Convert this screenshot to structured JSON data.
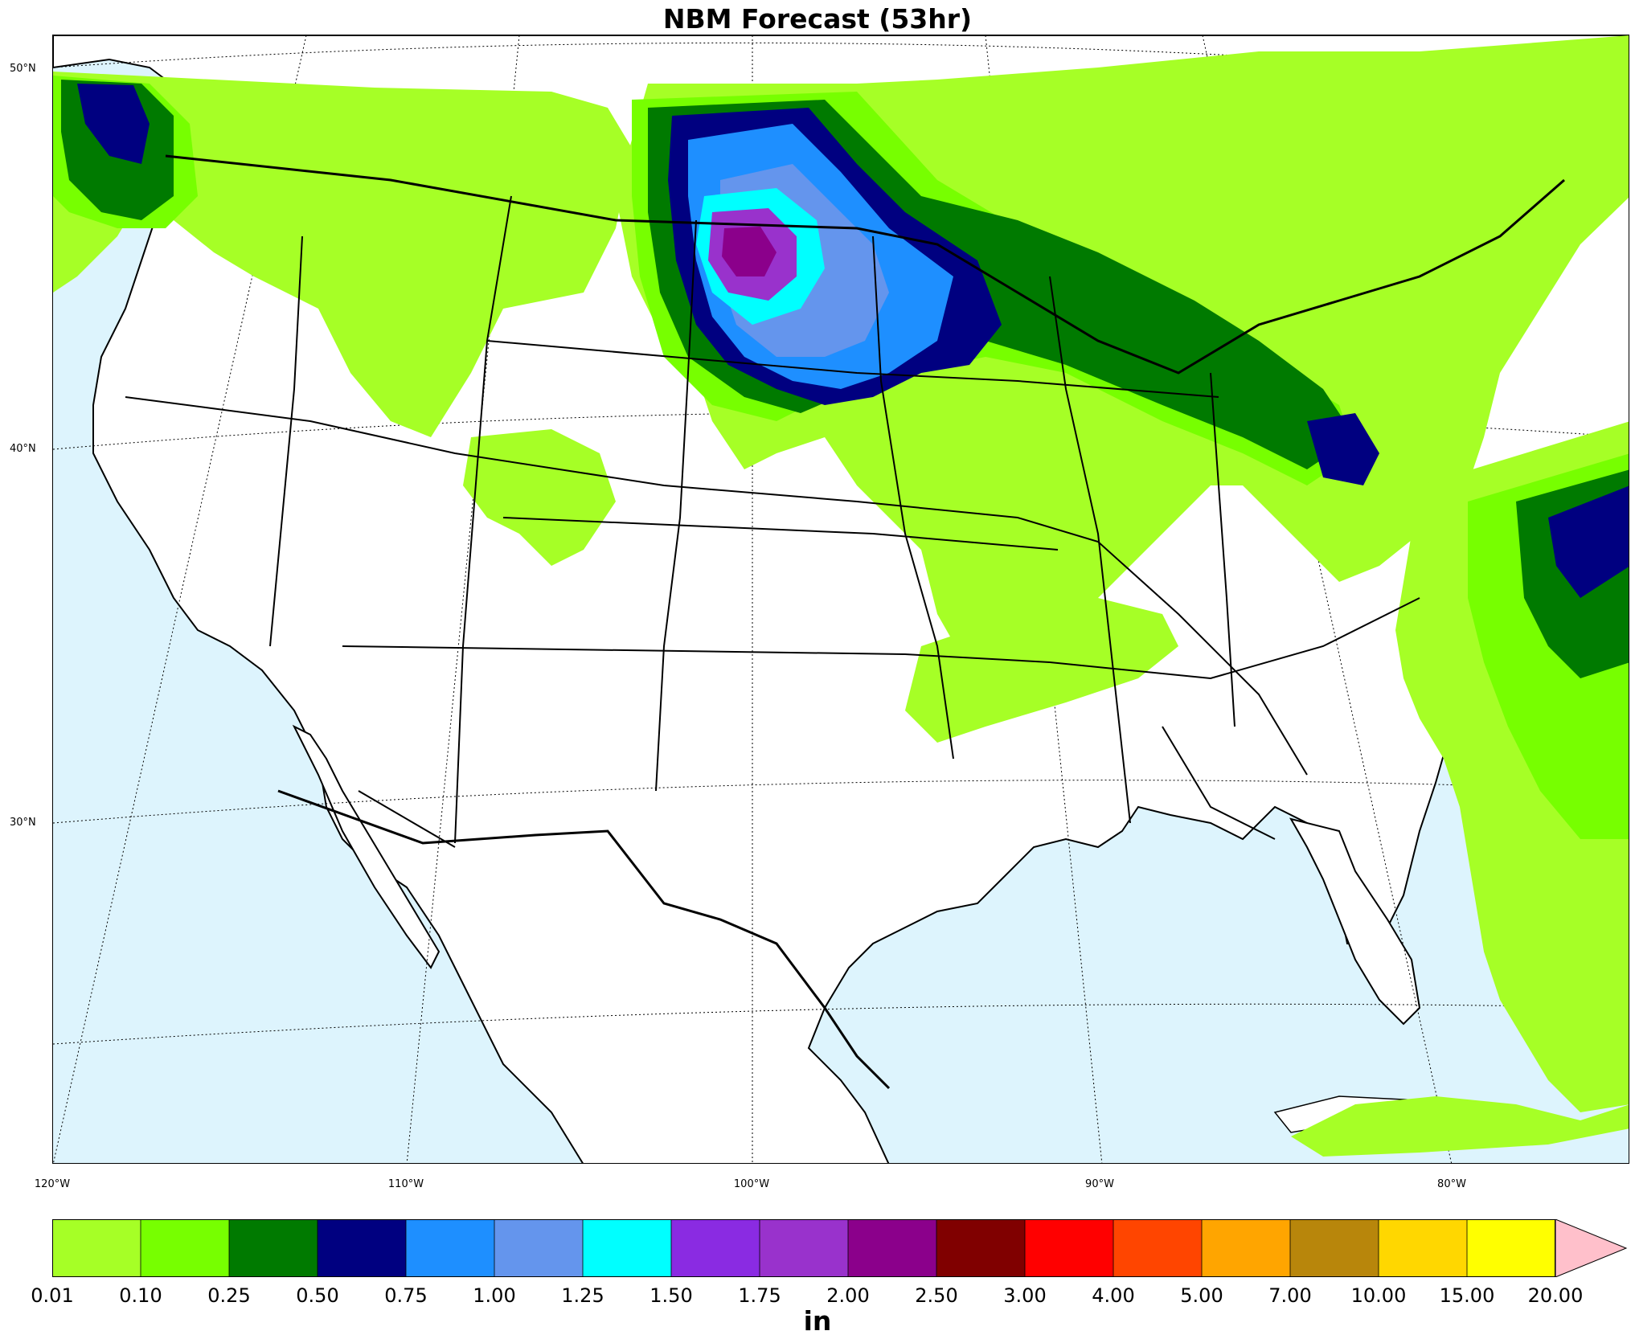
{
  "title": "NBM Forecast (53hr)",
  "unit": "in",
  "colors": {
    "ocean": "#ddf4fd",
    "land": "#ffffff",
    "border": "#000000"
  },
  "latitude_labels": [
    "50°N",
    "40°N",
    "30°N"
  ],
  "longitude_labels": [
    "120°W",
    "110°W",
    "100°W",
    "90°W",
    "80°W"
  ],
  "legend": {
    "ticks": [
      "0.01",
      "0.10",
      "0.25",
      "0.50",
      "0.75",
      "1.00",
      "1.25",
      "1.50",
      "1.75",
      "2.00",
      "2.50",
      "3.00",
      "4.00",
      "5.00",
      "7.00",
      "10.00",
      "15.00",
      "20.00"
    ],
    "colors": [
      "#a6ff26",
      "#77ff00",
      "#007a00",
      "#000080",
      "#1e8fff",
      "#6495ed",
      "#00ffff",
      "#8a2be2",
      "#9932cc",
      "#8b008b",
      "#800000",
      "#ff0000",
      "#ff4500",
      "#ffa500",
      "#b8860b",
      "#ffd700",
      "#ffff00"
    ],
    "extend_color": "#ffc0cb"
  }
}
